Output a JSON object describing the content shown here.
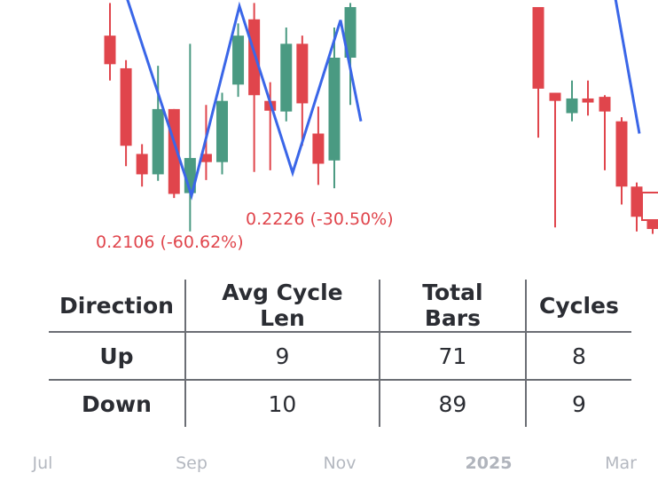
{
  "chart_data": {
    "type": "candlestick",
    "colors": {
      "up": "#4a9a82",
      "down": "#e0454c",
      "zigzag": "#3a66e8",
      "label": "#e0454c",
      "axis_text": "#b4b8c0"
    },
    "candles": [
      {
        "o": 0.745,
        "h": 0.785,
        "l": 0.69,
        "c": 0.71
      },
      {
        "o": 0.705,
        "h": 0.715,
        "l": 0.585,
        "c": 0.61
      },
      {
        "o": 0.6,
        "h": 0.612,
        "l": 0.56,
        "c": 0.575
      },
      {
        "o": 0.575,
        "h": 0.708,
        "l": 0.567,
        "c": 0.655
      },
      {
        "o": 0.655,
        "h": 0.655,
        "l": 0.546,
        "c": 0.551
      },
      {
        "o": 0.552,
        "h": 0.735,
        "l": 0.505,
        "c": 0.595
      },
      {
        "o": 0.6,
        "h": 0.66,
        "l": 0.568,
        "c": 0.59
      },
      {
        "o": 0.59,
        "h": 0.675,
        "l": 0.575,
        "c": 0.665
      },
      {
        "o": 0.685,
        "h": 0.76,
        "l": 0.67,
        "c": 0.745
      },
      {
        "o": 0.765,
        "h": 0.785,
        "l": 0.578,
        "c": 0.672
      },
      {
        "o": 0.665,
        "h": 0.688,
        "l": 0.58,
        "c": 0.653
      },
      {
        "o": 0.652,
        "h": 0.755,
        "l": 0.64,
        "c": 0.735
      },
      {
        "o": 0.735,
        "h": 0.745,
        "l": 0.61,
        "c": 0.662
      },
      {
        "o": 0.625,
        "h": 0.658,
        "l": 0.562,
        "c": 0.588
      },
      {
        "o": 0.592,
        "h": 0.755,
        "l": 0.558,
        "c": 0.718
      },
      {
        "o": 0.718,
        "h": 0.785,
        "l": 0.66,
        "c": 0.78
      },
      {
        "o": 0.78,
        "h": 0.78,
        "l": 0.62,
        "c": 0.68
      },
      {
        "o": 0.675,
        "h": 0.675,
        "l": 0.51,
        "c": 0.665
      },
      {
        "o": 0.65,
        "h": 0.69,
        "l": 0.64,
        "c": 0.668
      },
      {
        "o": 0.668,
        "h": 0.69,
        "l": 0.647,
        "c": 0.663
      },
      {
        "o": 0.67,
        "h": 0.672,
        "l": 0.58,
        "c": 0.652
      },
      {
        "o": 0.64,
        "h": 0.645,
        "l": 0.538,
        "c": 0.56
      },
      {
        "o": 0.56,
        "h": 0.565,
        "l": 0.505,
        "c": 0.523
      },
      {
        "o": 0.52,
        "h": 0.522,
        "l": 0.502,
        "c": 0.508
      }
    ],
    "zigzag": [
      0.795,
      0.549,
      0.781,
      0.577,
      0.764,
      0.64
    ],
    "annotations": [
      "0.2226 (-30.50%)",
      "0.2106 (-60.62%)"
    ],
    "x_ticks": [
      "Jul",
      "Sep",
      "Nov",
      "2025",
      "Mar"
    ],
    "bold_tick": "2025"
  },
  "table": {
    "headers": [
      "Direction",
      "Avg Cycle Len",
      "Total Bars",
      "Cycles"
    ],
    "rows": [
      [
        "Up",
        "9",
        "71",
        "8"
      ],
      [
        "Down",
        "10",
        "89",
        "9"
      ]
    ]
  }
}
